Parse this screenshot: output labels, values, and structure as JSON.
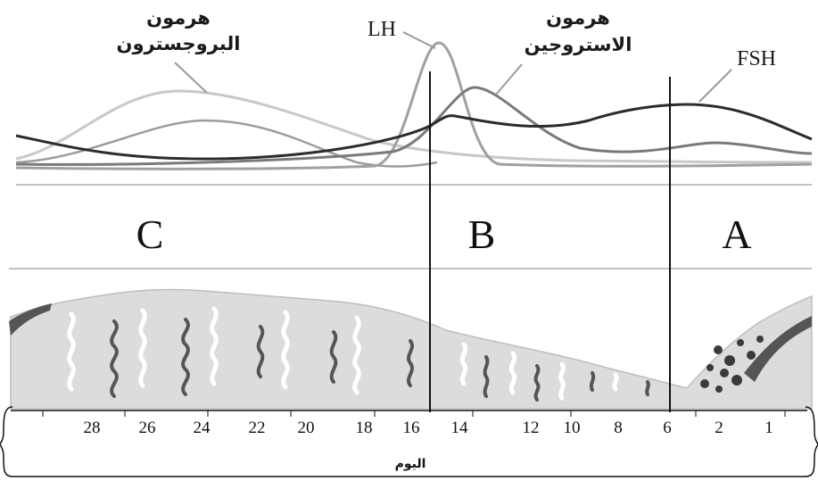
{
  "hormones": {
    "progesterone": {
      "label_line1": "هرمون",
      "label_line2": "البروجسترون",
      "color": "#c4c4c4"
    },
    "lh": {
      "label": "LH",
      "color": "#9a9a9a"
    },
    "estrogen": {
      "label_line1": "هرمون",
      "label_line2": "الاستروجين",
      "color": "#777777"
    },
    "fsh": {
      "label": "FSH",
      "color": "#2a2a2a"
    }
  },
  "phases": [
    {
      "id": "A",
      "label": "A"
    },
    {
      "id": "B",
      "label": "B"
    },
    {
      "id": "C",
      "label": "C"
    }
  ],
  "axis": {
    "title": "اليوم",
    "ticks": [
      "28",
      "26",
      "24",
      "22",
      "20",
      "18",
      "16",
      "14",
      "12",
      "10",
      "8",
      "6",
      "2",
      "1"
    ]
  },
  "colors": {
    "endometrium_fill": "#dcdcdc",
    "endometrium_edge": "#bdbdbd",
    "artery": "#555555",
    "menstrual_debris": "#3a3a3a"
  }
}
